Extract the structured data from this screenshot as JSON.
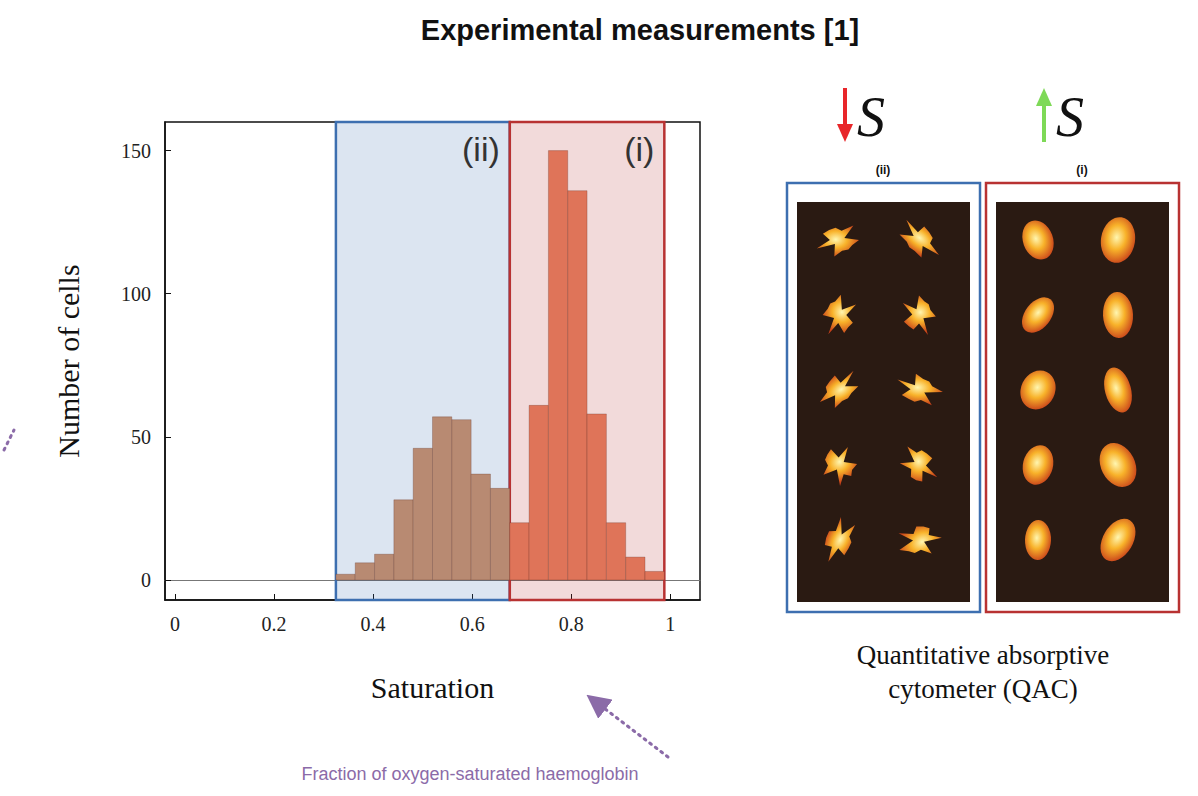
{
  "chart_data": {
    "type": "histogram",
    "title": "Experimental measurements [1]",
    "x_label": "Saturation",
    "y_label": "Number of cells",
    "bins": [
      0.325,
      0.364,
      0.403,
      0.442,
      0.481,
      0.52,
      0.559,
      0.598,
      0.637,
      0.676,
      0.715,
      0.754,
      0.793,
      0.832,
      0.871,
      0.91,
      0.949,
      0.988
    ],
    "values": [
      2,
      6,
      9,
      28,
      46,
      57,
      56,
      37,
      32,
      20,
      61,
      150,
      136,
      58,
      20,
      8,
      3
    ],
    "colors": [
      "#b88a72",
      "#b88a72",
      "#b88a72",
      "#b88a72",
      "#b88a72",
      "#b88a72",
      "#b88a72",
      "#b88a72",
      "#b88a72",
      "#df7459",
      "#df7459",
      "#df7459",
      "#df7459",
      "#df7459",
      "#df7459",
      "#df7459",
      "#df7459"
    ],
    "xlim": [
      -0.02,
      1.06
    ],
    "xticks": [
      0,
      0.2,
      0.4,
      0.6,
      0.8,
      1
    ],
    "ylim": [
      -7,
      160
    ],
    "yticks": [
      0,
      50,
      100,
      150
    ],
    "grid": false,
    "regions": [
      {
        "label": "(ii)",
        "range": [
          0.325,
          0.676
        ],
        "color": "#3d6fb0"
      },
      {
        "label": "(i)",
        "range": [
          0.676,
          0.988
        ],
        "color": "#b83232"
      }
    ],
    "annotations": [
      "Fraction of oxygen-saturated haemoglobin"
    ]
  },
  "panel": {
    "markers": [
      {
        "group": "(ii)",
        "symbol": "S",
        "direction": "down",
        "color": "#e8262a"
      },
      {
        "group": "(i)",
        "symbol": "S",
        "direction": "up",
        "color": "#7ed957"
      }
    ],
    "caption": [
      "Quantitative absorptive",
      "cytometer (QAC)"
    ]
  }
}
